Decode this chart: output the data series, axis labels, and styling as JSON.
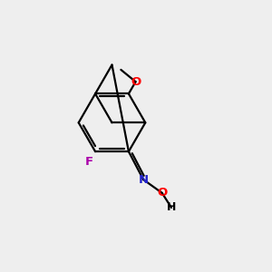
{
  "bg_color": "#eeeeee",
  "bond_color": "#000000",
  "atom_colors": {
    "O": "#ff0000",
    "N": "#2222cc",
    "F": "#aa00aa",
    "H": "#000000",
    "C": "#000000"
  },
  "figsize": [
    3.0,
    3.0
  ],
  "dpi": 100,
  "lw": 1.6,
  "fontsize": 9.5
}
